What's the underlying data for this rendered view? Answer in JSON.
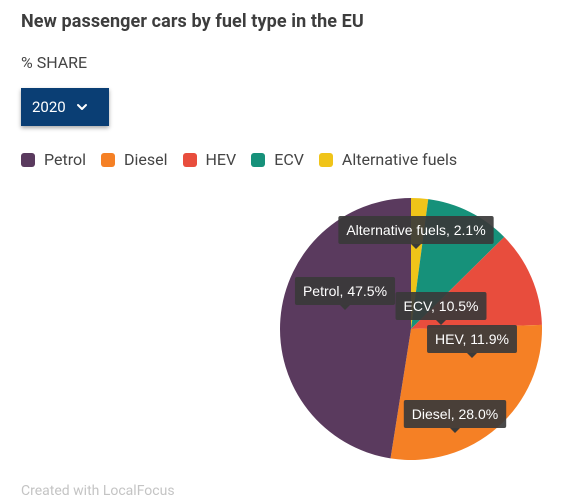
{
  "header": {
    "title": "New passenger cars by fuel type in the EU",
    "subtitle": "% SHARE"
  },
  "year_select": {
    "value": "2020"
  },
  "legend": [
    {
      "label": "Petrol",
      "color": "#5a3a5e"
    },
    {
      "label": "Diesel",
      "color": "#f58025"
    },
    {
      "label": "HEV",
      "color": "#e84d3d"
    },
    {
      "label": "ECV",
      "color": "#16917a"
    },
    {
      "label": "Alternative fuels",
      "color": "#f0c419"
    }
  ],
  "chart_data": {
    "type": "pie",
    "slices": [
      {
        "name": "Alternative fuels",
        "value": 2.1,
        "color": "#f0c419",
        "label": "Alternative fuels, 2.1%"
      },
      {
        "name": "ECV",
        "value": 10.5,
        "color": "#16917a",
        "label": "ECV, 10.5%"
      },
      {
        "name": "HEV",
        "value": 11.9,
        "color": "#e84d3d",
        "label": "HEV, 11.9%"
      },
      {
        "name": "Diesel",
        "value": 28.0,
        "color": "#f58025",
        "label": "Diesel, 28.0%"
      },
      {
        "name": "Petrol",
        "value": 47.5,
        "color": "#5a3a5e",
        "label": "Petrol, 47.5%"
      }
    ],
    "start_angle_deg": 0,
    "direction": "clockwise"
  },
  "footer": {
    "credit": "Created with LocalFocus"
  }
}
